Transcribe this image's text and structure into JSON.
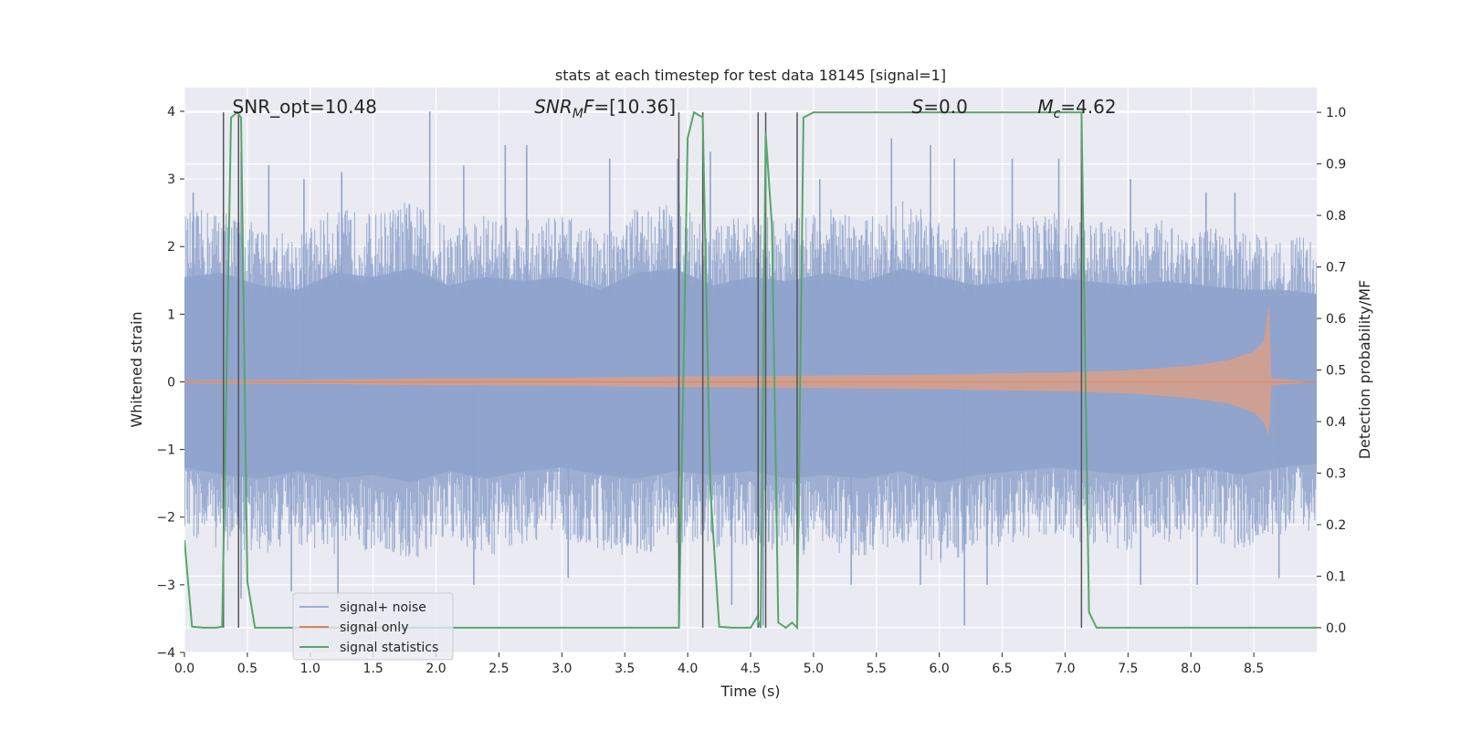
{
  "chart_data": {
    "type": "line",
    "title": "stats at each timestep for test data 18145 [signal=1]",
    "xlabel": "Time (s)",
    "ylabel": "Whitened strain",
    "ylabel_right": "Detection probability/MF",
    "xlim": [
      0,
      9.0
    ],
    "ylim": [
      -4,
      4.35
    ],
    "ylim_right": [
      -0.048,
      1.048
    ],
    "xticks": [
      0.0,
      0.5,
      1.0,
      1.5,
      2.0,
      2.5,
      3.0,
      3.5,
      4.0,
      4.5,
      5.0,
      5.5,
      6.0,
      6.5,
      7.0,
      7.5,
      8.0,
      8.5
    ],
    "xtick_labels": [
      "0.0",
      "0.5",
      "1.0",
      "1.5",
      "2.0",
      "2.5",
      "3.0",
      "3.5",
      "4.0",
      "4.5",
      "5.0",
      "5.5",
      "6.0",
      "6.5",
      "7.0",
      "7.5",
      "8.0",
      "8.5"
    ],
    "yticks": [
      -4,
      -3,
      -2,
      -1,
      0,
      1,
      2,
      3,
      4
    ],
    "ytick_labels": [
      "−4",
      "−3",
      "−2",
      "−1",
      "0",
      "1",
      "2",
      "3",
      "4"
    ],
    "yticks_right": [
      0.0,
      0.1,
      0.2,
      0.3,
      0.4,
      0.5,
      0.6,
      0.7,
      0.8,
      0.9,
      1.0
    ],
    "ytick_right_labels": [
      "0.0",
      "0.1",
      "0.2",
      "0.3",
      "0.4",
      "0.5",
      "0.6",
      "0.7",
      "0.8",
      "0.9",
      "1.0"
    ],
    "grid": true,
    "legend_position": "bottom-left",
    "annotations": [
      {
        "text": "SNR_opt=10.48",
        "x": 0.2
      },
      {
        "text": "SNR",
        "sub": "M",
        "rest": "F=[10.36]",
        "x": 2.6,
        "italic": true
      },
      {
        "text": "S",
        "rest": "=0.0",
        "x": 5.6,
        "italic": true
      },
      {
        "text": "M",
        "sub": "c",
        "rest": "=4.62",
        "x": 6.6,
        "italic": true
      }
    ],
    "vlines": [
      0.31,
      0.43,
      3.93,
      4.12,
      4.56,
      4.62,
      4.87,
      7.13
    ],
    "series": [
      {
        "name": "signal+ noise",
        "color": "#8fa3cc",
        "envelope_upper": [
          [
            0.0,
            2.5
          ],
          [
            0.3,
            2.6
          ],
          [
            0.6,
            2.3
          ],
          [
            0.9,
            2.2
          ],
          [
            1.2,
            2.6
          ],
          [
            1.5,
            2.5
          ],
          [
            1.8,
            2.7
          ],
          [
            2.1,
            2.3
          ],
          [
            2.4,
            2.5
          ],
          [
            2.7,
            2.4
          ],
          [
            3.0,
            2.5
          ],
          [
            3.3,
            2.2
          ],
          [
            3.6,
            2.6
          ],
          [
            3.9,
            2.7
          ],
          [
            4.2,
            2.3
          ],
          [
            4.5,
            2.5
          ],
          [
            4.8,
            2.4
          ],
          [
            5.1,
            2.6
          ],
          [
            5.4,
            2.4
          ],
          [
            5.7,
            2.7
          ],
          [
            6.0,
            2.5
          ],
          [
            6.3,
            2.3
          ],
          [
            6.6,
            2.4
          ],
          [
            6.9,
            2.5
          ],
          [
            7.2,
            2.4
          ],
          [
            7.5,
            2.3
          ],
          [
            7.8,
            2.4
          ],
          [
            8.1,
            2.3
          ],
          [
            8.4,
            2.2
          ],
          [
            8.7,
            2.2
          ],
          [
            9.0,
            2.1
          ]
        ],
        "envelope_lower": [
          [
            0.0,
            -2.3
          ],
          [
            0.3,
            -2.5
          ],
          [
            0.6,
            -2.6
          ],
          [
            0.9,
            -2.4
          ],
          [
            1.2,
            -2.6
          ],
          [
            1.5,
            -2.5
          ],
          [
            1.8,
            -2.7
          ],
          [
            2.1,
            -2.4
          ],
          [
            2.4,
            -2.6
          ],
          [
            2.7,
            -2.4
          ],
          [
            3.0,
            -2.3
          ],
          [
            3.3,
            -2.5
          ],
          [
            3.6,
            -2.6
          ],
          [
            3.9,
            -2.4
          ],
          [
            4.2,
            -2.5
          ],
          [
            4.5,
            -2.4
          ],
          [
            4.8,
            -2.6
          ],
          [
            5.1,
            -2.5
          ],
          [
            5.4,
            -2.6
          ],
          [
            5.7,
            -2.4
          ],
          [
            6.0,
            -2.7
          ],
          [
            6.3,
            -2.5
          ],
          [
            6.6,
            -2.4
          ],
          [
            6.9,
            -2.3
          ],
          [
            7.2,
            -2.4
          ],
          [
            7.5,
            -2.5
          ],
          [
            7.8,
            -2.4
          ],
          [
            8.1,
            -2.3
          ],
          [
            8.4,
            -2.5
          ],
          [
            8.7,
            -2.3
          ],
          [
            9.0,
            -2.2
          ]
        ],
        "peaks": [
          [
            0.07,
            2.8
          ],
          [
            0.45,
            3.4
          ],
          [
            0.67,
            3.2
          ],
          [
            0.95,
            3.0
          ],
          [
            1.25,
            3.1
          ],
          [
            1.95,
            4.0
          ],
          [
            2.22,
            3.2
          ],
          [
            2.55,
            3.5
          ],
          [
            2.72,
            3.5
          ],
          [
            3.38,
            3.3
          ],
          [
            3.92,
            3.3
          ],
          [
            4.18,
            3.4
          ],
          [
            4.62,
            3.5
          ],
          [
            5.05,
            3.0
          ],
          [
            5.62,
            3.6
          ],
          [
            5.93,
            3.5
          ],
          [
            6.12,
            3.3
          ],
          [
            6.58,
            3.3
          ],
          [
            6.95,
            3.3
          ],
          [
            7.52,
            3.0
          ],
          [
            8.12,
            2.8
          ],
          [
            8.35,
            2.8
          ],
          [
            0.85,
            -3.1
          ],
          [
            1.22,
            -3.2
          ],
          [
            2.3,
            -3.0
          ],
          [
            3.05,
            -2.9
          ],
          [
            4.35,
            -3.3
          ],
          [
            4.6,
            -3.6
          ],
          [
            5.3,
            -3.0
          ],
          [
            6.2,
            -3.6
          ],
          [
            6.38,
            -3.0
          ],
          [
            7.6,
            -3.0
          ],
          [
            8.05,
            -3.0
          ],
          [
            8.7,
            -2.9
          ],
          [
            0.45,
            -3.2
          ],
          [
            5.85,
            -3.0
          ]
        ]
      },
      {
        "name": "signal only",
        "color": "#dd8452",
        "envelope": [
          [
            0.0,
            0.02
          ],
          [
            1.0,
            0.03
          ],
          [
            2.0,
            0.05
          ],
          [
            3.0,
            0.06
          ],
          [
            4.0,
            0.08
          ],
          [
            5.0,
            0.09
          ],
          [
            6.0,
            0.11
          ],
          [
            7.0,
            0.14
          ],
          [
            7.5,
            0.17
          ],
          [
            8.0,
            0.24
          ],
          [
            8.3,
            0.32
          ],
          [
            8.5,
            0.45
          ],
          [
            8.58,
            0.6
          ],
          [
            8.62,
            1.15
          ],
          [
            8.64,
            0.05
          ],
          [
            9.0,
            0.0
          ]
        ],
        "min_envelope": [
          [
            8.62,
            -0.8
          ]
        ]
      },
      {
        "name": "signal statistics",
        "color": "#55a868",
        "axis": "right",
        "points": [
          [
            0.0,
            0.17
          ],
          [
            0.06,
            0.002
          ],
          [
            0.15,
            0.0
          ],
          [
            0.25,
            0.0
          ],
          [
            0.3,
            0.002
          ],
          [
            0.37,
            0.99
          ],
          [
            0.42,
            1.0
          ],
          [
            0.45,
            0.99
          ],
          [
            0.5,
            0.09
          ],
          [
            0.56,
            0.0
          ],
          [
            1.0,
            0.0
          ],
          [
            2.0,
            0.0
          ],
          [
            3.0,
            0.0
          ],
          [
            3.93,
            0.0
          ],
          [
            4.0,
            0.95
          ],
          [
            4.05,
            1.0
          ],
          [
            4.12,
            0.99
          ],
          [
            4.18,
            0.27
          ],
          [
            4.25,
            0.002
          ],
          [
            4.35,
            0.0
          ],
          [
            4.5,
            0.0
          ],
          [
            4.55,
            0.02
          ],
          [
            4.58,
            0.0
          ],
          [
            4.62,
            0.96
          ],
          [
            4.67,
            0.78
          ],
          [
            4.72,
            0.01
          ],
          [
            4.78,
            0.0
          ],
          [
            4.83,
            0.01
          ],
          [
            4.87,
            0.0
          ],
          [
            4.92,
            0.99
          ],
          [
            5.0,
            1.0
          ],
          [
            5.5,
            1.0
          ],
          [
            6.0,
            1.0
          ],
          [
            6.5,
            1.0
          ],
          [
            7.13,
            1.0
          ],
          [
            7.19,
            0.03
          ],
          [
            7.25,
            0.0
          ],
          [
            8.0,
            0.0
          ],
          [
            9.0,
            0.0
          ]
        ]
      }
    ]
  }
}
